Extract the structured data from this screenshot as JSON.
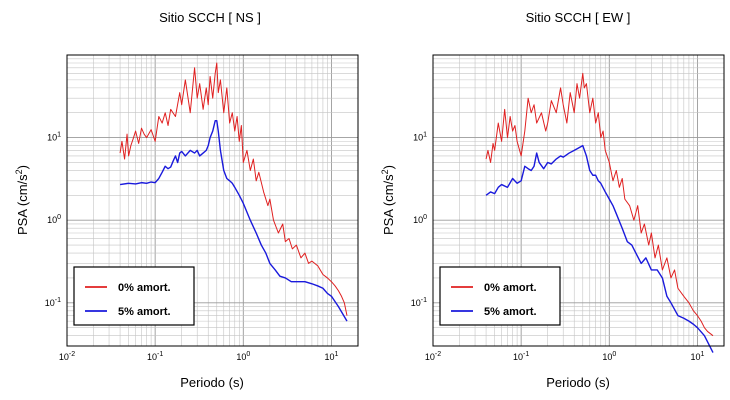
{
  "chart_data": [
    {
      "type": "line",
      "title": "Sitio SCCH [ NS ]",
      "xlabel": "Periodo (s)",
      "ylabel_main": "PSA (cm/s",
      "ylabel_sup": "2",
      "ylabel_close": ")",
      "x_scale": "log",
      "y_scale": "log",
      "xlim": [
        0.01,
        20
      ],
      "ylim": [
        0.03,
        100
      ],
      "grid": true,
      "legend_position": "bottom-left",
      "x_ticks": [
        {
          "value": 0.01,
          "base": "10",
          "exp": "-2"
        },
        {
          "value": 0.1,
          "base": "10",
          "exp": "-1"
        },
        {
          "value": 1,
          "base": "10",
          "exp": "0"
        },
        {
          "value": 10,
          "base": "10",
          "exp": "1"
        }
      ],
      "y_ticks": [
        {
          "value": 0.1,
          "base": "10",
          "exp": "-1"
        },
        {
          "value": 1,
          "base": "10",
          "exp": "0"
        },
        {
          "value": 10,
          "base": "10",
          "exp": "1"
        }
      ],
      "series": [
        {
          "name": "0% amort.",
          "color": "#e02020",
          "x": [
            0.04,
            0.042,
            0.045,
            0.048,
            0.05,
            0.053,
            0.056,
            0.06,
            0.065,
            0.07,
            0.075,
            0.08,
            0.09,
            0.1,
            0.11,
            0.12,
            0.13,
            0.14,
            0.15,
            0.17,
            0.19,
            0.2,
            0.22,
            0.25,
            0.28,
            0.3,
            0.32,
            0.35,
            0.38,
            0.4,
            0.42,
            0.45,
            0.48,
            0.5,
            0.52,
            0.55,
            0.6,
            0.65,
            0.7,
            0.75,
            0.8,
            0.85,
            0.9,
            0.95,
            1.0,
            1.1,
            1.2,
            1.3,
            1.4,
            1.5,
            1.7,
            1.9,
            2.0,
            2.2,
            2.5,
            2.8,
            3.0,
            3.3,
            3.6,
            4.0,
            4.5,
            5.0,
            5.5,
            6.0,
            7.0,
            8.0,
            9.0,
            10.0,
            11.0,
            12.0,
            13.0,
            14.0,
            15.0
          ],
          "y": [
            6.5,
            9.0,
            5.5,
            11.0,
            6.0,
            8.0,
            9.5,
            12.0,
            8.5,
            13.0,
            11.0,
            10.0,
            12.5,
            9.0,
            18.0,
            15.0,
            20.0,
            14.0,
            22.0,
            18.0,
            35.0,
            25.0,
            50.0,
            20.0,
            70.0,
            30.0,
            45.0,
            22.0,
            40.0,
            25.0,
            55.0,
            30.0,
            60.0,
            80.0,
            35.0,
            50.0,
            20.0,
            40.0,
            15.0,
            20.0,
            12.0,
            18.0,
            9.0,
            14.0,
            5.0,
            7.0,
            4.0,
            5.5,
            3.0,
            3.8,
            2.2,
            1.5,
            1.8,
            1.0,
            0.7,
            0.9,
            0.55,
            0.6,
            0.45,
            0.5,
            0.35,
            0.4,
            0.3,
            0.32,
            0.28,
            0.22,
            0.2,
            0.18,
            0.16,
            0.14,
            0.12,
            0.1,
            0.07
          ]
        },
        {
          "name": "5% amort.",
          "color": "#1a1adc",
          "x": [
            0.04,
            0.05,
            0.06,
            0.07,
            0.08,
            0.09,
            0.1,
            0.11,
            0.12,
            0.13,
            0.14,
            0.15,
            0.16,
            0.17,
            0.18,
            0.19,
            0.2,
            0.22,
            0.25,
            0.28,
            0.3,
            0.32,
            0.35,
            0.38,
            0.4,
            0.42,
            0.45,
            0.48,
            0.5,
            0.52,
            0.55,
            0.6,
            0.65,
            0.7,
            0.75,
            0.8,
            0.9,
            1.0,
            1.2,
            1.4,
            1.6,
            1.8,
            2.0,
            2.3,
            2.6,
            3.0,
            3.5,
            4.0,
            5.0,
            6.0,
            7.0,
            8.0,
            9.0,
            10.0,
            12.0,
            15.0
          ],
          "y": [
            2.7,
            2.8,
            2.75,
            2.85,
            2.8,
            2.9,
            2.85,
            3.2,
            3.8,
            4.5,
            4.2,
            4.4,
            5.2,
            6.0,
            5.0,
            6.5,
            6.8,
            6.0,
            7.0,
            6.5,
            7.0,
            6.0,
            6.5,
            7.0,
            8.0,
            10.0,
            12.0,
            16.0,
            16.0,
            12.0,
            7.0,
            4.0,
            3.2,
            3.0,
            2.8,
            2.5,
            2.0,
            1.6,
            1.0,
            0.7,
            0.5,
            0.4,
            0.3,
            0.25,
            0.21,
            0.2,
            0.18,
            0.18,
            0.18,
            0.17,
            0.16,
            0.15,
            0.13,
            0.12,
            0.09,
            0.06
          ]
        }
      ]
    },
    {
      "type": "line",
      "title": "Sitio SCCH [ EW ]",
      "xlabel": "Periodo (s)",
      "ylabel_main": "PSA (cm/s",
      "ylabel_sup": "2",
      "ylabel_close": ")",
      "x_scale": "log",
      "y_scale": "log",
      "xlim": [
        0.01,
        20
      ],
      "ylim": [
        0.03,
        100
      ],
      "grid": true,
      "legend_position": "bottom-left",
      "x_ticks": [
        {
          "value": 0.01,
          "base": "10",
          "exp": "-2"
        },
        {
          "value": 0.1,
          "base": "10",
          "exp": "-1"
        },
        {
          "value": 1,
          "base": "10",
          "exp": "0"
        },
        {
          "value": 10,
          "base": "10",
          "exp": "1"
        }
      ],
      "y_ticks": [
        {
          "value": 0.1,
          "base": "10",
          "exp": "-1"
        },
        {
          "value": 1,
          "base": "10",
          "exp": "0"
        },
        {
          "value": 10,
          "base": "10",
          "exp": "1"
        }
      ],
      "series": [
        {
          "name": "0% amort.",
          "color": "#e02020",
          "x": [
            0.04,
            0.042,
            0.045,
            0.048,
            0.05,
            0.055,
            0.06,
            0.065,
            0.07,
            0.075,
            0.08,
            0.085,
            0.09,
            0.1,
            0.11,
            0.12,
            0.13,
            0.14,
            0.15,
            0.17,
            0.19,
            0.2,
            0.22,
            0.25,
            0.28,
            0.3,
            0.33,
            0.36,
            0.4,
            0.43,
            0.46,
            0.5,
            0.52,
            0.55,
            0.6,
            0.65,
            0.7,
            0.75,
            0.8,
            0.85,
            0.9,
            1.0,
            1.1,
            1.2,
            1.3,
            1.4,
            1.5,
            1.7,
            1.9,
            2.1,
            2.3,
            2.5,
            2.8,
            3.0,
            3.3,
            3.6,
            4.0,
            4.5,
            5.0,
            5.5,
            6.0,
            7.0,
            8.0,
            9.0,
            10.0,
            11.0,
            12.0,
            13.0,
            15.0
          ],
          "y": [
            5.5,
            7.0,
            5.0,
            8.5,
            7.0,
            15.0,
            9.0,
            22.0,
            10.0,
            18.0,
            12.0,
            14.0,
            9.0,
            6.0,
            12.0,
            30.0,
            20.0,
            25.0,
            15.0,
            20.0,
            12.0,
            15.0,
            28.0,
            20.0,
            40.0,
            25.0,
            15.0,
            35.0,
            20.0,
            45.0,
            30.0,
            60.0,
            40.0,
            45.0,
            20.0,
            30.0,
            15.0,
            20.0,
            10.0,
            12.0,
            7.0,
            5.0,
            3.0,
            4.0,
            2.5,
            3.2,
            1.8,
            1.5,
            1.0,
            1.5,
            0.7,
            0.9,
            0.5,
            0.7,
            0.35,
            0.5,
            0.25,
            0.35,
            0.2,
            0.25,
            0.15,
            0.12,
            0.1,
            0.08,
            0.07,
            0.06,
            0.05,
            0.045,
            0.04
          ]
        },
        {
          "name": "5% amort.",
          "color": "#1a1adc",
          "x": [
            0.04,
            0.045,
            0.05,
            0.055,
            0.06,
            0.07,
            0.08,
            0.09,
            0.1,
            0.11,
            0.12,
            0.13,
            0.14,
            0.15,
            0.16,
            0.18,
            0.2,
            0.22,
            0.25,
            0.28,
            0.3,
            0.35,
            0.4,
            0.45,
            0.5,
            0.55,
            0.6,
            0.65,
            0.7,
            0.75,
            0.8,
            0.9,
            1.0,
            1.1,
            1.2,
            1.4,
            1.6,
            1.8,
            2.0,
            2.3,
            2.6,
            3.0,
            3.5,
            4.0,
            4.5,
            5.0,
            6.0,
            7.0,
            8.0,
            9.0,
            10.0,
            12.0,
            15.0
          ],
          "y": [
            2.0,
            2.2,
            2.1,
            2.5,
            2.7,
            2.5,
            3.2,
            2.8,
            3.0,
            4.5,
            4.2,
            4.0,
            4.5,
            6.5,
            5.0,
            4.2,
            5.0,
            4.8,
            5.5,
            6.0,
            5.8,
            6.5,
            7.0,
            7.5,
            8.0,
            6.0,
            4.0,
            3.5,
            3.5,
            3.0,
            2.8,
            2.2,
            1.8,
            1.5,
            1.2,
            0.8,
            0.55,
            0.5,
            0.4,
            0.3,
            0.35,
            0.25,
            0.25,
            0.2,
            0.12,
            0.1,
            0.07,
            0.065,
            0.06,
            0.055,
            0.05,
            0.04,
            0.025
          ]
        }
      ]
    }
  ]
}
